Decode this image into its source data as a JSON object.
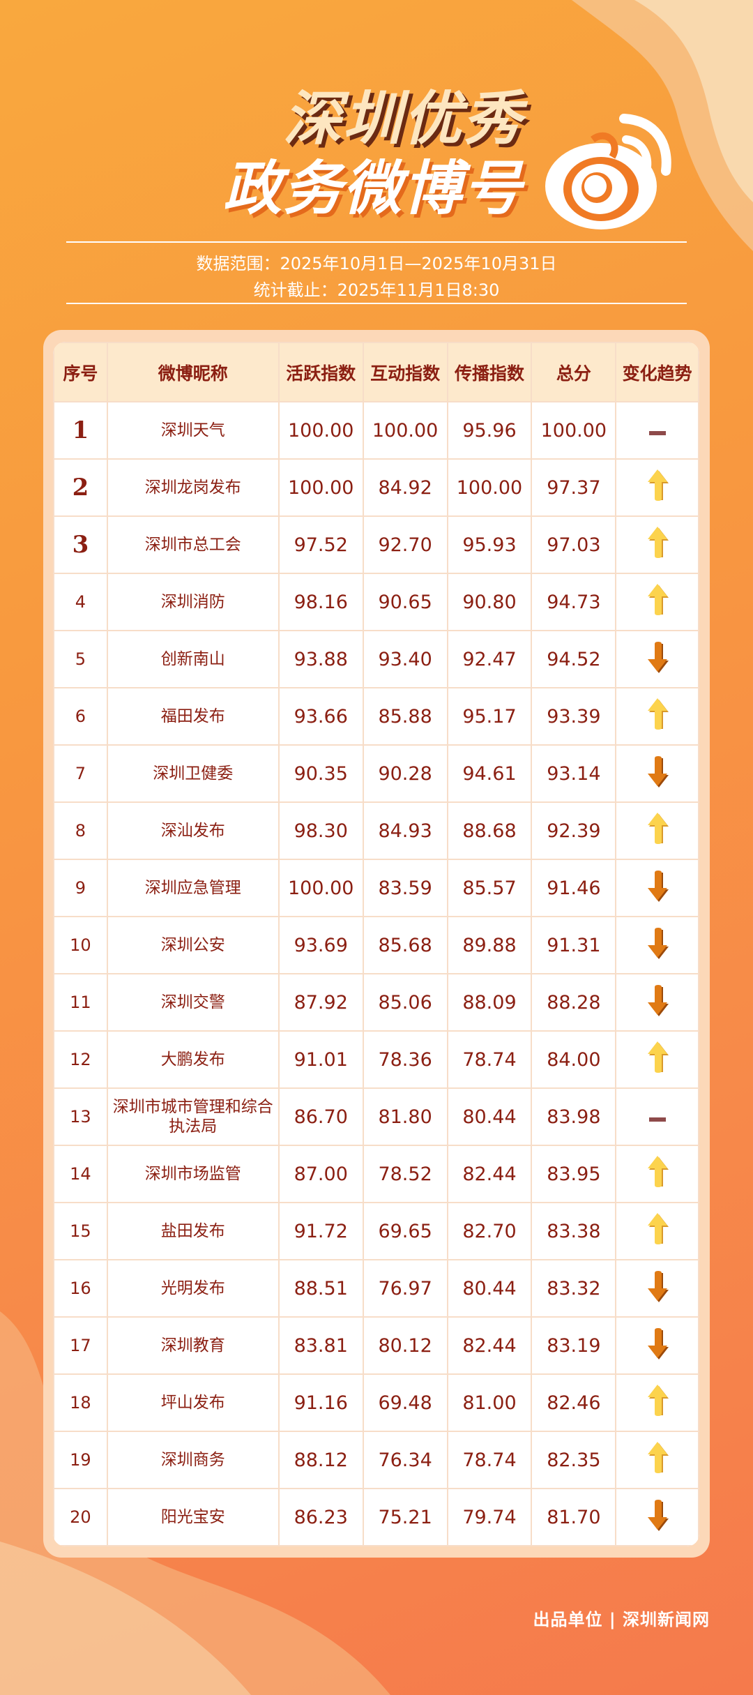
{
  "header": {
    "title_line1": "深圳优秀",
    "title_line2": "政务微博号",
    "logo_icon": "weibo-logo-icon",
    "data_range": "数据范围：2025年10月1日—2025年10月31日",
    "cutoff": "统计截止：2025年11月1日8:30"
  },
  "table": {
    "columns": [
      "序号",
      "微博昵称",
      "活跃指数",
      "互动指数",
      "传播指数",
      "总分",
      "变化趋势"
    ],
    "rows": [
      {
        "rank": "1",
        "name": "深圳天气",
        "active": "100.00",
        "interact": "100.00",
        "spread": "95.96",
        "total": "100.00",
        "trend": "flat"
      },
      {
        "rank": "2",
        "name": "深圳龙岗发布",
        "active": "100.00",
        "interact": "84.92",
        "spread": "100.00",
        "total": "97.37",
        "trend": "up"
      },
      {
        "rank": "3",
        "name": "深圳市总工会",
        "active": "97.52",
        "interact": "92.70",
        "spread": "95.93",
        "total": "97.03",
        "trend": "up"
      },
      {
        "rank": "4",
        "name": "深圳消防",
        "active": "98.16",
        "interact": "90.65",
        "spread": "90.80",
        "total": "94.73",
        "trend": "up"
      },
      {
        "rank": "5",
        "name": "创新南山",
        "active": "93.88",
        "interact": "93.40",
        "spread": "92.47",
        "total": "94.52",
        "trend": "down"
      },
      {
        "rank": "6",
        "name": "福田发布",
        "active": "93.66",
        "interact": "85.88",
        "spread": "95.17",
        "total": "93.39",
        "trend": "up"
      },
      {
        "rank": "7",
        "name": "深圳卫健委",
        "active": "90.35",
        "interact": "90.28",
        "spread": "94.61",
        "total": "93.14",
        "trend": "down"
      },
      {
        "rank": "8",
        "name": "深汕发布",
        "active": "98.30",
        "interact": "84.93",
        "spread": "88.68",
        "total": "92.39",
        "trend": "up"
      },
      {
        "rank": "9",
        "name": "深圳应急管理",
        "active": "100.00",
        "interact": "83.59",
        "spread": "85.57",
        "total": "91.46",
        "trend": "down"
      },
      {
        "rank": "10",
        "name": "深圳公安",
        "active": "93.69",
        "interact": "85.68",
        "spread": "89.88",
        "total": "91.31",
        "trend": "down"
      },
      {
        "rank": "11",
        "name": "深圳交警",
        "active": "87.92",
        "interact": "85.06",
        "spread": "88.09",
        "total": "88.28",
        "trend": "down"
      },
      {
        "rank": "12",
        "name": "大鹏发布",
        "active": "91.01",
        "interact": "78.36",
        "spread": "78.74",
        "total": "84.00",
        "trend": "up"
      },
      {
        "rank": "13",
        "name": "深圳市城市管理和综合执法局",
        "active": "86.70",
        "interact": "81.80",
        "spread": "80.44",
        "total": "83.98",
        "trend": "flat"
      },
      {
        "rank": "14",
        "name": "深圳市场监管",
        "active": "87.00",
        "interact": "78.52",
        "spread": "82.44",
        "total": "83.95",
        "trend": "up"
      },
      {
        "rank": "15",
        "name": "盐田发布",
        "active": "91.72",
        "interact": "69.65",
        "spread": "82.70",
        "total": "83.38",
        "trend": "up"
      },
      {
        "rank": "16",
        "name": "光明发布",
        "active": "88.51",
        "interact": "76.97",
        "spread": "80.44",
        "total": "83.32",
        "trend": "down"
      },
      {
        "rank": "17",
        "name": "深圳教育",
        "active": "83.81",
        "interact": "80.12",
        "spread": "82.44",
        "total": "83.19",
        "trend": "down"
      },
      {
        "rank": "18",
        "name": "坪山发布",
        "active": "91.16",
        "interact": "69.48",
        "spread": "81.00",
        "total": "82.46",
        "trend": "up"
      },
      {
        "rank": "19",
        "name": "深圳商务",
        "active": "88.12",
        "interact": "76.34",
        "spread": "78.74",
        "total": "82.35",
        "trend": "up"
      },
      {
        "rank": "20",
        "name": "阳光宝安",
        "active": "86.23",
        "interact": "75.21",
        "spread": "79.74",
        "total": "81.70",
        "trend": "down"
      }
    ]
  },
  "colors": {
    "up": "#fcd34d",
    "down": "#e07a14",
    "flat": "#8e4a4a",
    "text": "#8b1f12"
  },
  "footer": {
    "credit": "出品单位 | 深圳新闻网"
  }
}
